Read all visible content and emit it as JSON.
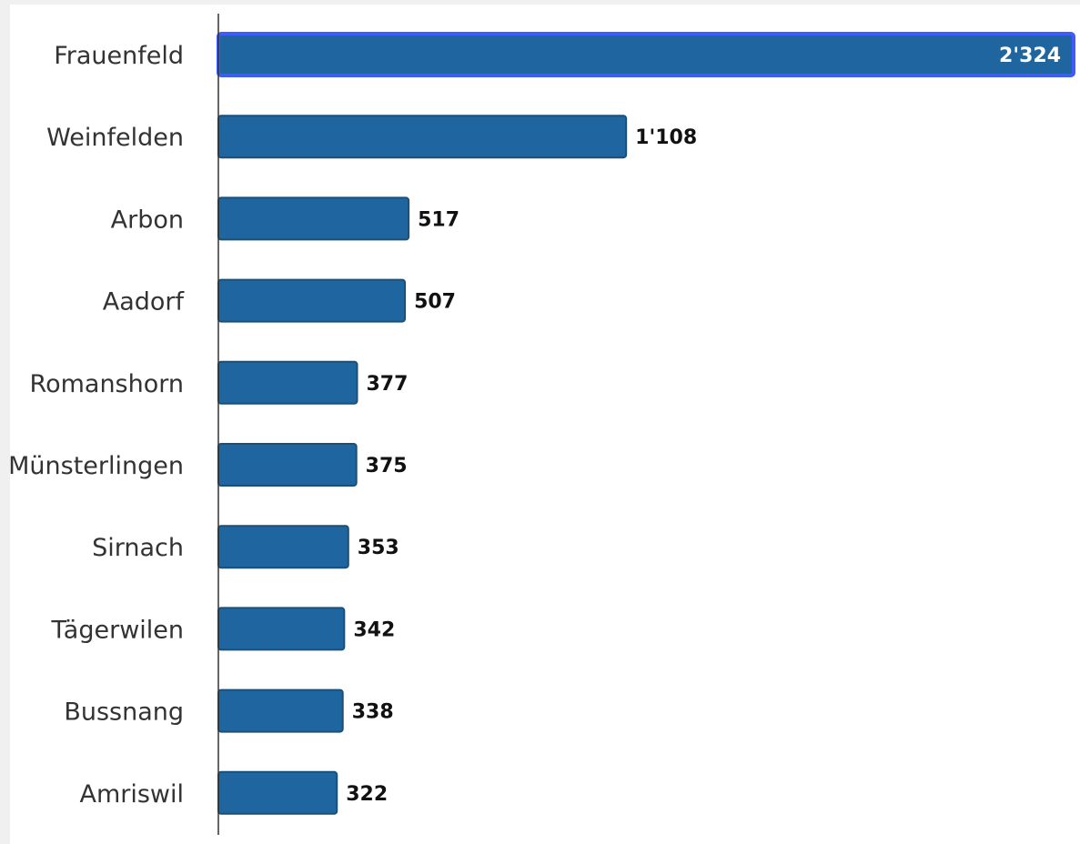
{
  "chart_data": {
    "type": "bar",
    "orientation": "horizontal",
    "categories": [
      "Frauenfeld",
      "Weinfelden",
      "Arbon",
      "Aadorf",
      "Romanshorn",
      "Münsterlingen",
      "Sirnach",
      "Tägerwilen",
      "Bussnang",
      "Amriswil"
    ],
    "values": [
      2324,
      1108,
      517,
      507,
      377,
      375,
      353,
      342,
      338,
      322
    ],
    "value_labels": [
      "2'324",
      "1'108",
      "517",
      "507",
      "377",
      "375",
      "353",
      "342",
      "338",
      "322"
    ],
    "title": "",
    "xlabel": "",
    "ylabel": "",
    "xlim": [
      0,
      2324
    ],
    "grid": false,
    "legend": "none",
    "highlighted_category": "Frauenfeld",
    "colors": {
      "bar": "#1f66a0",
      "bar_stroke": "#1a4f7a",
      "highlight_stroke": "#3d5bff",
      "axis": "#333333"
    }
  }
}
